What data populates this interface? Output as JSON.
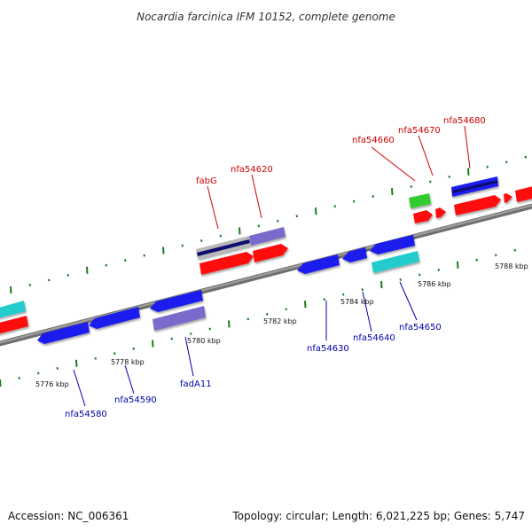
{
  "title": "Nocardia farcinica IFM 10152, complete genome",
  "footer": {
    "accession": "Accession: NC_006361",
    "summary": "Topology: circular; Length: 6,021,225 bp; Genes: 5,747"
  },
  "colors": {
    "backbone": "#808080",
    "tick_major": "#1a7a1a",
    "tick_minor": "#1a7a1a",
    "red_gene": "#ff1010",
    "blue_gene": "#1a1aee",
    "cyan_gene": "#22cccc",
    "purple_gene": "#7a6acc",
    "gray_gene": "#b8b8b8",
    "navy_gene": "#101070",
    "green_gene": "#33cc33",
    "label_red": "#cc0000",
    "label_blue": "#0000aa"
  },
  "scale_labels": [
    "5776 kbp",
    "5778 kbp",
    "5780 kbp",
    "5782 kbp",
    "5784 kbp",
    "5786 kbp",
    "5788 kbp"
  ],
  "gene_labels": {
    "top": [
      "fabG",
      "nfa54620",
      "nfa54660",
      "nfa54670",
      "nfa54680"
    ],
    "bottom": [
      "nfa54580",
      "nfa54590",
      "fadA11",
      "nfa54630",
      "nfa54640",
      "nfa54650"
    ]
  }
}
